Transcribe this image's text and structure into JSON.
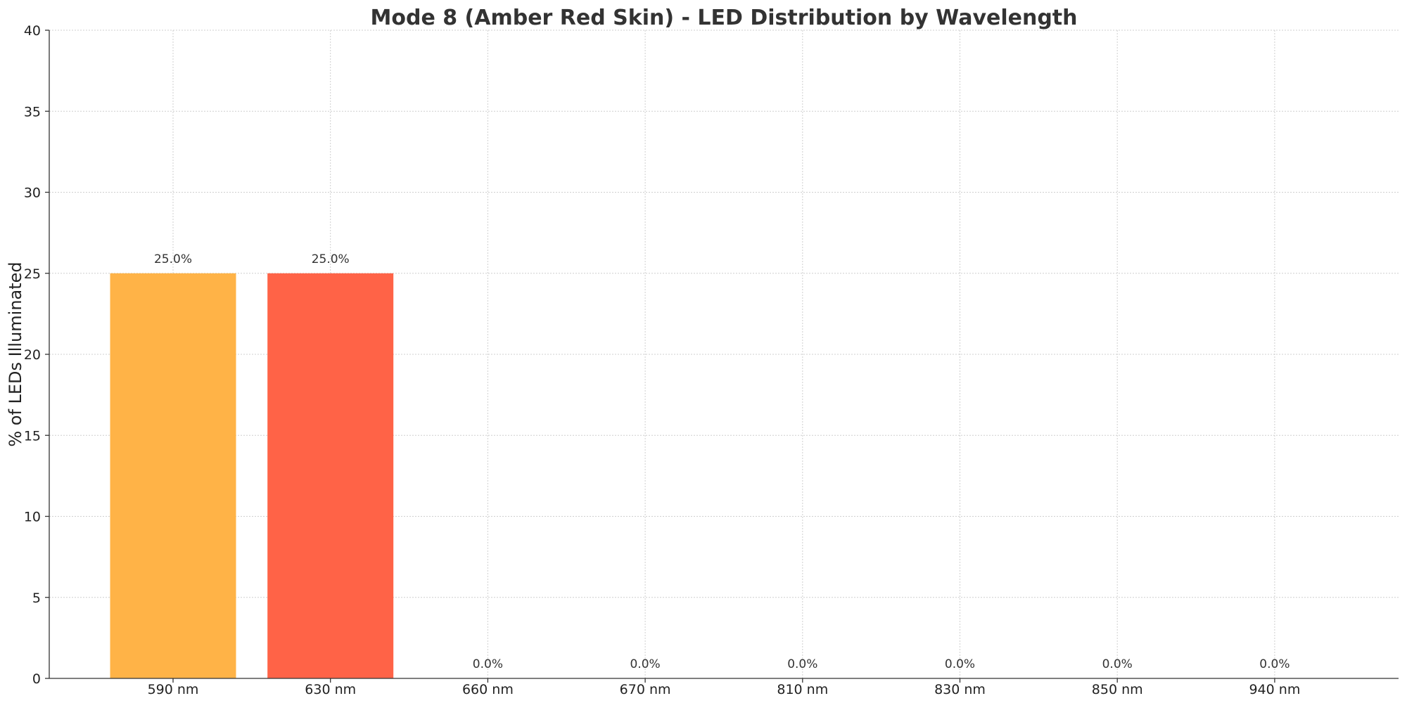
{
  "chart_data": {
    "type": "bar",
    "title": "Mode 8 (Amber Red Skin) - LED Distribution by Wavelength",
    "xlabel": "",
    "ylabel": "% of LEDs Illuminated",
    "categories": [
      "590 nm",
      "630 nm",
      "660 nm",
      "670 nm",
      "810 nm",
      "830 nm",
      "850 nm",
      "940 nm"
    ],
    "values": [
      25.0,
      25.0,
      0.0,
      0.0,
      0.0,
      0.0,
      0.0,
      0.0
    ],
    "data_labels": [
      "25.0%",
      "25.0%",
      "0.0%",
      "0.0%",
      "0.0%",
      "0.0%",
      "0.0%",
      "0.0%"
    ],
    "bar_colors": [
      "#FFB347",
      "#FF6347",
      "#FF6347",
      "#FF6347",
      "#FF6347",
      "#FF6347",
      "#FF6347",
      "#FF6347"
    ],
    "ylim": [
      0,
      40
    ],
    "yticks": [
      0,
      5,
      10,
      15,
      20,
      25,
      30,
      35,
      40
    ],
    "grid": true,
    "legend": false
  }
}
